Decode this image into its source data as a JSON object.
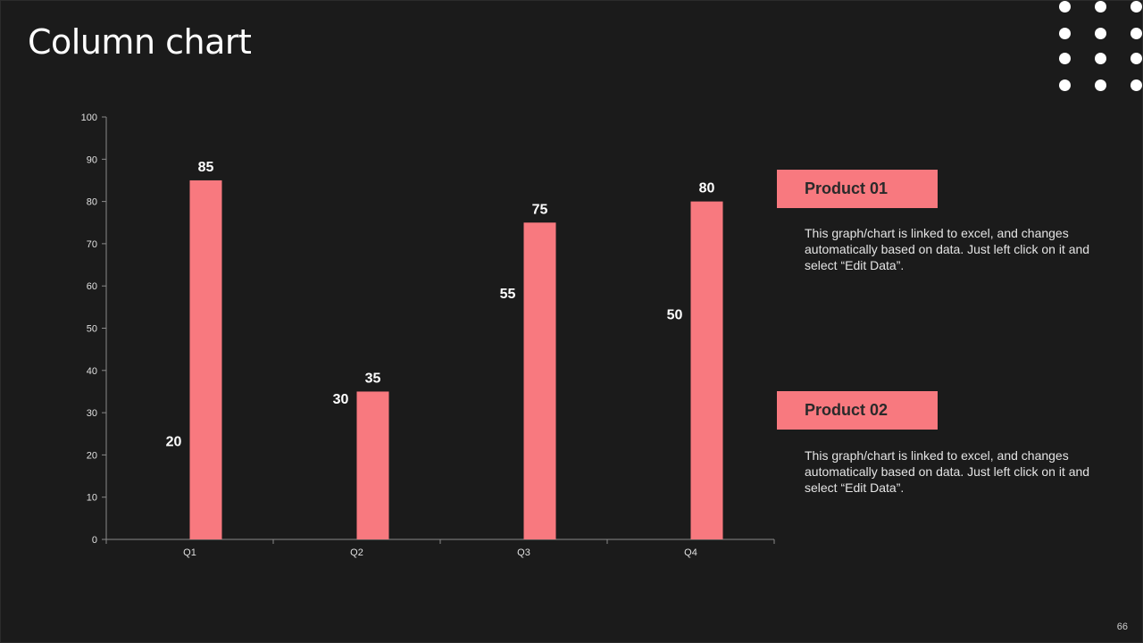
{
  "title": "Column chart",
  "page_number": "66",
  "colors": {
    "background": "#1b1b1b",
    "accent": "#f8797f",
    "text": "#ffffff"
  },
  "legend": [
    {
      "label": "Product 01",
      "description": "This graph/chart is linked to excel, and changes automatically based on data. Just left click on it and select “Edit Data”."
    },
    {
      "label": "Product 02",
      "description": "This graph/chart is linked to excel, and changes automatically based on data. Just left click on it and select “Edit Data”."
    }
  ],
  "chart_data": {
    "type": "bar",
    "categories": [
      "Q1",
      "Q2",
      "Q3",
      "Q4"
    ],
    "series": [
      {
        "values": [
          20,
          30,
          55,
          50
        ]
      },
      {
        "values": [
          85,
          35,
          75,
          80
        ]
      }
    ],
    "ylim": [
      0,
      100
    ],
    "yticks": [
      0,
      10,
      20,
      30,
      40,
      50,
      60,
      70,
      80,
      90,
      100
    ],
    "grid": false
  }
}
